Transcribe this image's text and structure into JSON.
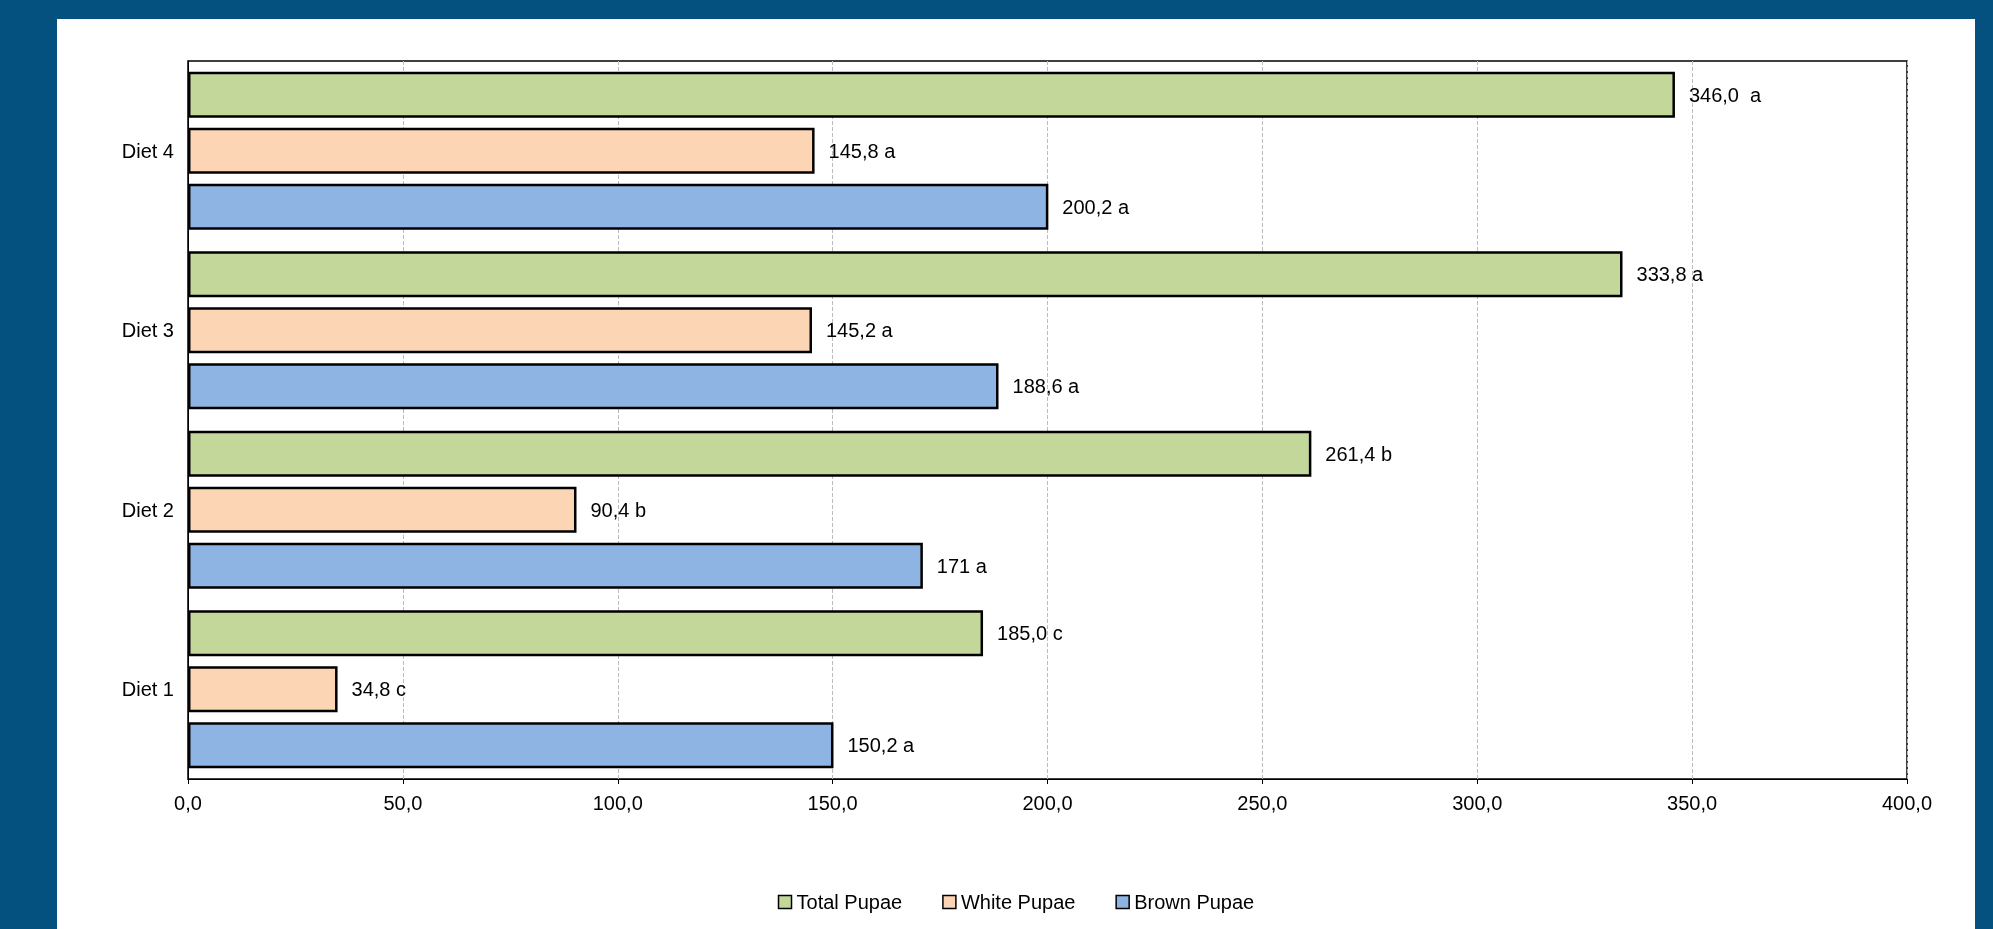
{
  "chart_data": {
    "type": "bar",
    "orientation": "horizontal",
    "categories": [
      "Diet 4",
      "Diet 3",
      "Diet 2",
      "Diet 1"
    ],
    "series": [
      {
        "name": "Total Pupae",
        "color": "#c4d79b",
        "values": [
          346.0,
          333.8,
          261.4,
          185.0
        ],
        "value_labels": [
          "346,0  a",
          "333,8 a",
          "261,4 b",
          "185,0 c"
        ]
      },
      {
        "name": "White Pupae",
        "color": "#fcd5b4",
        "values": [
          145.8,
          145.2,
          90.4,
          34.8
        ],
        "value_labels": [
          "145,8 a",
          "145,2 a",
          "90,4 b",
          "34,8 c"
        ]
      },
      {
        "name": "Brown Pupae",
        "color": "#8db4e2",
        "values": [
          200.2,
          188.6,
          171,
          150.2
        ],
        "value_labels": [
          "200,2 a",
          "188,6 a",
          "171 a",
          "150,2 a"
        ]
      }
    ],
    "xlim": [
      0,
      400
    ],
    "xticks": [
      {
        "value": 0,
        "label": "0,0"
      },
      {
        "value": 50,
        "label": "50,0"
      },
      {
        "value": 100,
        "label": "100,0"
      },
      {
        "value": 150,
        "label": "150,0"
      },
      {
        "value": 200,
        "label": "200,0"
      },
      {
        "value": 250,
        "label": "250,0"
      },
      {
        "value": 300,
        "label": "300,0"
      },
      {
        "value": 350,
        "label": "350,0"
      },
      {
        "value": 400,
        "label": "400,0"
      }
    ],
    "grid": "x",
    "legend": "bottom"
  }
}
